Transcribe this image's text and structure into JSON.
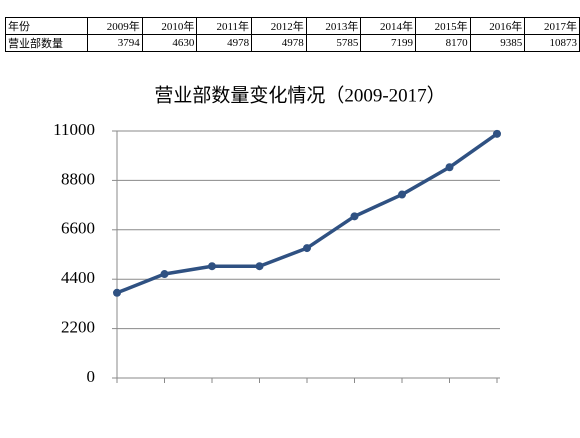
{
  "table": {
    "rows": [
      [
        "年份",
        "2009年",
        "2010年",
        "2011年",
        "2012年",
        "2013年",
        "2014年",
        "2015年",
        "2016年",
        "2017年"
      ],
      [
        "营业部数量",
        3794,
        4630,
        4978,
        4978,
        5785,
        7199,
        8170,
        9385,
        10873
      ]
    ]
  },
  "chart_data": {
    "type": "line",
    "title": "营业部数量变化情况（2009-2017）",
    "categories": [
      null,
      null,
      null,
      null,
      null,
      null,
      null,
      null,
      null
    ],
    "values": [
      3794,
      4630,
      4978,
      4978,
      5785,
      7199,
      8170,
      9385,
      10873
    ],
    "color": "#2f5182",
    "ylim": [
      0,
      11000
    ],
    "yticks": [
      0,
      2200,
      4400,
      6600,
      8800,
      11000
    ],
    "grid": true
  }
}
